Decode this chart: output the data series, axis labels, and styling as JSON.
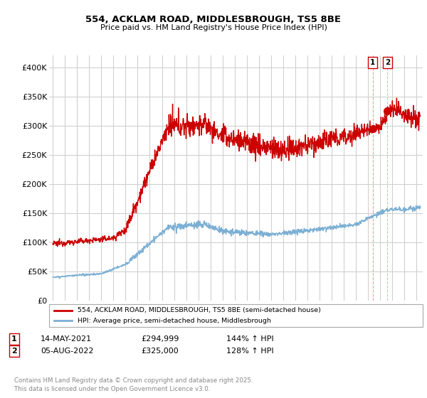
{
  "title": "554, ACKLAM ROAD, MIDDLESBROUGH, TS5 8BE",
  "subtitle": "Price paid vs. HM Land Registry's House Price Index (HPI)",
  "ylim": [
    0,
    420000
  ],
  "yticks": [
    0,
    50000,
    100000,
    150000,
    200000,
    250000,
    300000,
    350000,
    400000
  ],
  "ytick_labels": [
    "£0",
    "£50K",
    "£100K",
    "£150K",
    "£200K",
    "£250K",
    "£300K",
    "£350K",
    "£400K"
  ],
  "xlim_start": 1994.7,
  "xlim_end": 2025.5,
  "red_line_color": "#cc0000",
  "blue_line_color": "#7bafd4",
  "point1_x": 2021.37,
  "point1_y": 294999,
  "point2_x": 2022.59,
  "point2_y": 325000,
  "point1_label": "1",
  "point2_label": "2",
  "point1_date": "14-MAY-2021",
  "point1_price": "£294,999",
  "point1_hpi": "144% ↑ HPI",
  "point2_date": "05-AUG-2022",
  "point2_price": "£325,000",
  "point2_hpi": "128% ↑ HPI",
  "legend_label_red": "554, ACKLAM ROAD, MIDDLESBROUGH, TS5 8BE (semi-detached house)",
  "legend_label_blue": "HPI: Average price, semi-detached house, Middlesbrough",
  "footer_text": "Contains HM Land Registry data © Crown copyright and database right 2025.\nThis data is licensed under the Open Government Licence v3.0.",
  "background_color": "#ffffff",
  "grid_color": "#cccccc"
}
